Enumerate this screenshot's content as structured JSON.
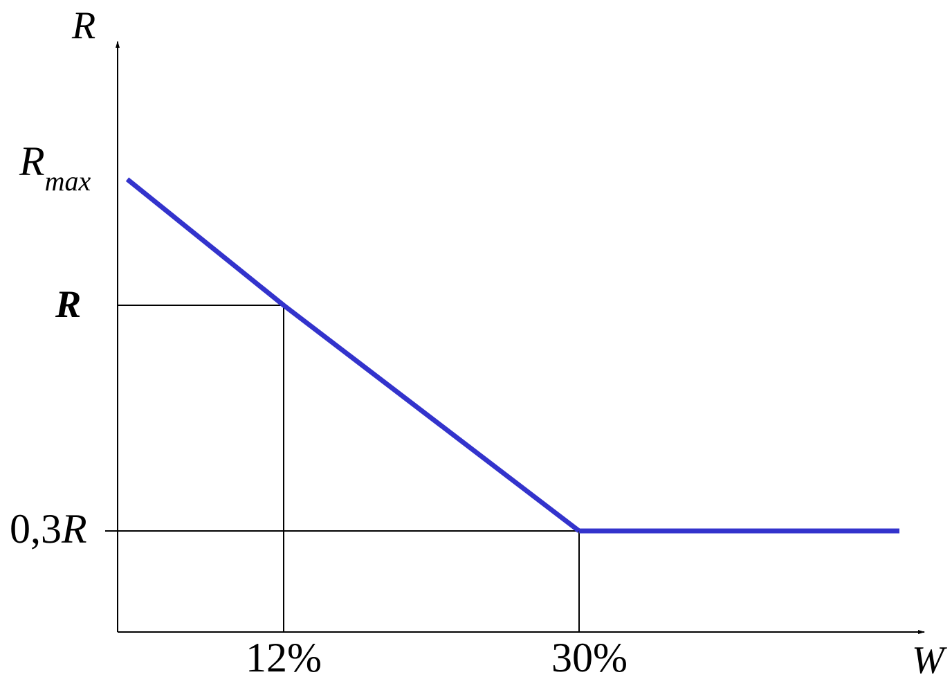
{
  "chart_data": {
    "type": "line",
    "ylabel": "R",
    "xlabel": "W",
    "x_ticks": [
      "12%",
      "30%"
    ],
    "y_ticks": {
      "rmax_main": "R",
      "rmax_sub": "max",
      "r_highlight": "R",
      "r_low_prefix": "0,3",
      "r_low_var": "R"
    },
    "series": [
      {
        "points": [
          {
            "x": 0,
            "y": 1.0
          },
          {
            "x": 12,
            "y": 0.72
          },
          {
            "x": 30,
            "y": 0.3
          },
          {
            "x": 50,
            "y": 0.3
          }
        ]
      }
    ],
    "guides": [
      {
        "from": "y-axis",
        "y": 0.72,
        "to_x": 12
      },
      {
        "from": "x-axis",
        "x": 12,
        "to_y": 0.72
      },
      {
        "from": "y-axis",
        "y": 0.3,
        "to_x": 30
      },
      {
        "from": "x-axis",
        "x": 30,
        "to_y": 0.3
      }
    ],
    "colors": {
      "line": "#3333cc",
      "highlight_label": "#ff5555",
      "axes": "#000000"
    }
  }
}
